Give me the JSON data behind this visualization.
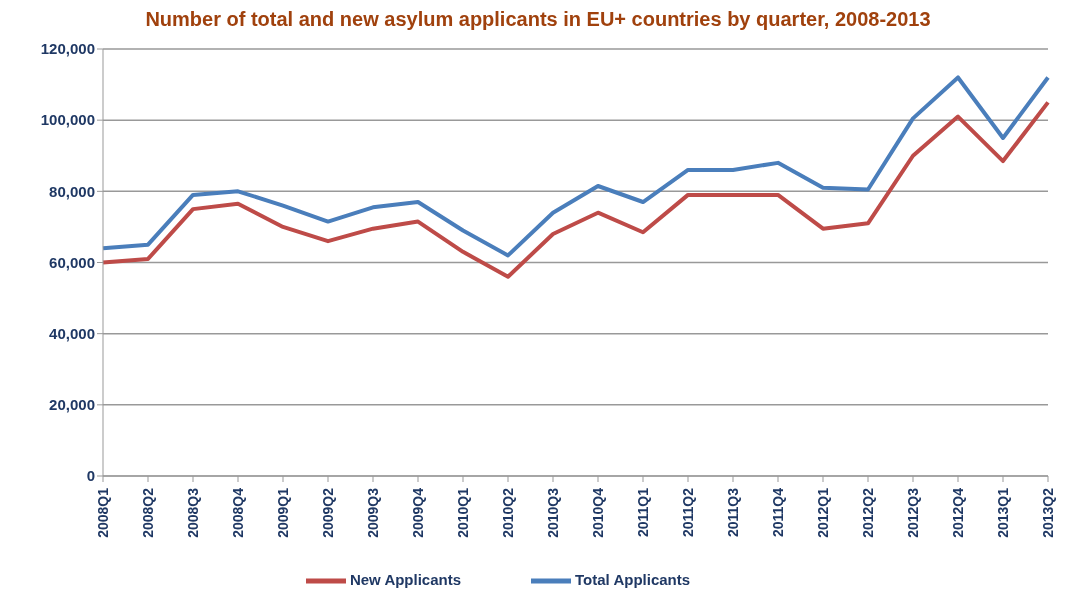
{
  "chart_data": {
    "type": "line",
    "title": "Number of total and new asylum applicants in EU+ countries by quarter, 2008-2013",
    "categories": [
      "2008Q1",
      "2008Q2",
      "2008Q3",
      "2008Q4",
      "2009Q1",
      "2009Q2",
      "2009Q3",
      "2009Q4",
      "2010Q1",
      "2010Q2",
      "2010Q3",
      "2010Q4",
      "2011Q1",
      "2011Q2",
      "2011Q3",
      "2011Q4",
      "2012Q1",
      "2012Q2",
      "2012Q3",
      "2012Q4",
      "2013Q1",
      "2013Q2"
    ],
    "series": [
      {
        "name": "Total Applicants",
        "color": "#4a7ebb",
        "values": [
          64000,
          65000,
          79000,
          80000,
          76000,
          71500,
          75500,
          77000,
          69000,
          62000,
          74000,
          81500,
          77000,
          86000,
          86000,
          88000,
          81000,
          80500,
          100500,
          112000,
          95000,
          112000
        ]
      },
      {
        "name": "New Applicants",
        "color": "#be4b48",
        "values": [
          60000,
          61000,
          75000,
          76500,
          70000,
          66000,
          69500,
          71500,
          63000,
          56000,
          68000,
          74000,
          68500,
          79000,
          79000,
          79000,
          69500,
          71000,
          90000,
          101000,
          88500,
          105000
        ]
      }
    ],
    "ylim": [
      0,
      120000
    ],
    "yticks": [
      {
        "value": 0,
        "label": "0"
      },
      {
        "value": 20000,
        "label": "20,000"
      },
      {
        "value": 40000,
        "label": "40,000"
      },
      {
        "value": 60000,
        "label": "60,000"
      },
      {
        "value": 80000,
        "label": "80,000"
      },
      {
        "value": 100000,
        "label": "100,000"
      },
      {
        "value": 120000,
        "label": "120,000"
      }
    ],
    "grid": "y",
    "legend": "bottom",
    "marker": "none",
    "line_style": "solid"
  }
}
